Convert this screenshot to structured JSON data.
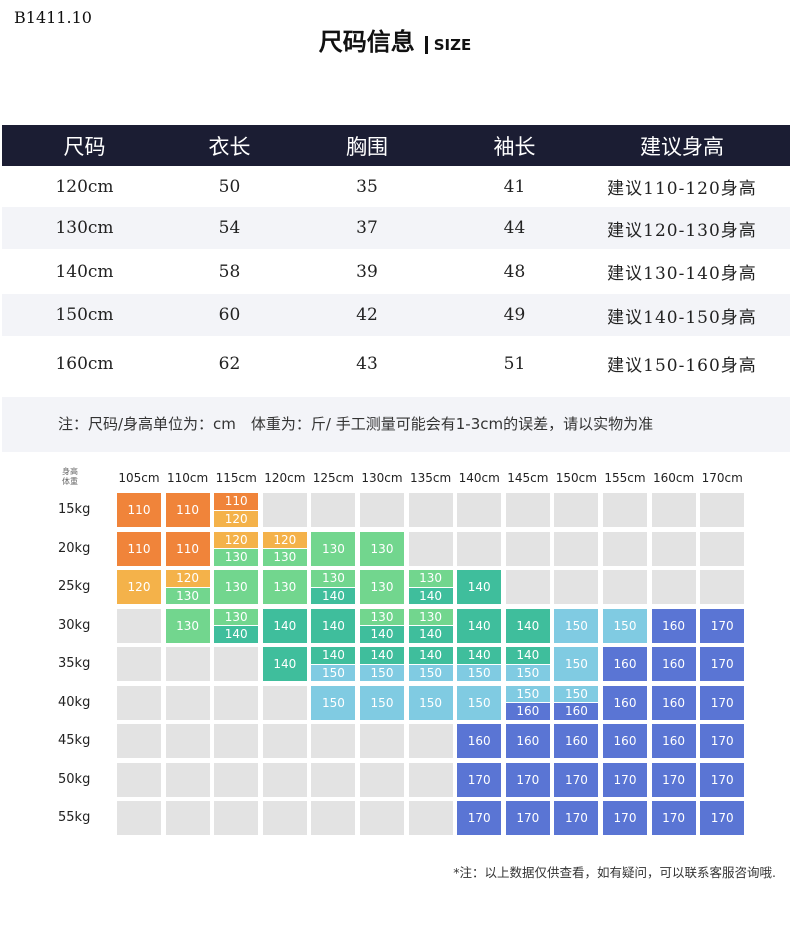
{
  "product_code": "B1411.10",
  "title": {
    "zh": "尺码信息",
    "en": "SIZE"
  },
  "size_table": {
    "headers": [
      "尺码",
      "衣长",
      "胸围",
      "袖长",
      "建议身高"
    ],
    "rows": [
      [
        "120cm",
        "50",
        "35",
        "41",
        "建议110-120身高"
      ],
      [
        "130cm",
        "54",
        "37",
        "44",
        "建议120-130身高"
      ],
      [
        "140cm",
        "58",
        "39",
        "48",
        "建议130-140身高"
      ],
      [
        "150cm",
        "60",
        "42",
        "49",
        "建议140-150身高"
      ],
      [
        "160cm",
        "62",
        "43",
        "51",
        "建议150-160身高"
      ]
    ],
    "header_color": "#1b1d33"
  },
  "note": "注：尺码/身高单位为：cm　体重为：斤/ 手工测量可能会有1-3cm的误差，请以实物为准",
  "recommendation_grid": {
    "corner_label": [
      "身高",
      "体重"
    ],
    "heights": [
      "105cm",
      "110cm",
      "115cm",
      "120cm",
      "125cm",
      "130cm",
      "135cm",
      "140cm",
      "145cm",
      "150cm",
      "155cm",
      "160cm",
      "170cm"
    ],
    "weights": [
      "15kg",
      "20kg",
      "25kg",
      "30kg",
      "35kg",
      "40kg",
      "45kg",
      "50kg",
      "55kg"
    ],
    "cells": [
      [
        [
          "110"
        ],
        [
          "110"
        ],
        [
          "110",
          "120"
        ],
        [],
        [],
        [],
        [],
        [],
        [],
        [],
        [],
        [],
        []
      ],
      [
        [
          "110"
        ],
        [
          "110"
        ],
        [
          "120",
          "130"
        ],
        [
          "120",
          "130"
        ],
        [
          "130"
        ],
        [
          "130"
        ],
        [],
        [],
        [],
        [],
        [],
        [],
        []
      ],
      [
        [
          "120"
        ],
        [
          "120",
          "130"
        ],
        [
          "130"
        ],
        [
          "130"
        ],
        [
          "130",
          "140"
        ],
        [
          "130"
        ],
        [
          "130",
          "140"
        ],
        [
          "140"
        ],
        [],
        [],
        [],
        [],
        []
      ],
      [
        [],
        [
          "130"
        ],
        [
          "130",
          "140"
        ],
        [
          "140"
        ],
        [
          "140"
        ],
        [
          "130",
          "140"
        ],
        [
          "130",
          "140"
        ],
        [
          "140"
        ],
        [
          "140"
        ],
        [
          "150"
        ],
        [
          "150"
        ],
        [
          "160"
        ],
        [
          "170"
        ]
      ],
      [
        [],
        [],
        [],
        [
          "140"
        ],
        [
          "140",
          "150"
        ],
        [
          "140",
          "150"
        ],
        [
          "140",
          "150"
        ],
        [
          "140",
          "150"
        ],
        [
          "140",
          "150"
        ],
        [
          "150"
        ],
        [
          "160"
        ],
        [
          "160"
        ],
        [
          "170"
        ]
      ],
      [
        [],
        [],
        [],
        [],
        [
          "150"
        ],
        [
          "150"
        ],
        [
          "150"
        ],
        [
          "150"
        ],
        [
          "150",
          "160"
        ],
        [
          "150",
          "160"
        ],
        [
          "160"
        ],
        [
          "160"
        ],
        [
          "170"
        ]
      ],
      [
        [],
        [],
        [],
        [],
        [],
        [],
        [],
        [
          "160"
        ],
        [
          "160"
        ],
        [
          "160"
        ],
        [
          "160"
        ],
        [
          "160"
        ],
        [
          "170"
        ]
      ],
      [
        [],
        [],
        [],
        [],
        [],
        [],
        [],
        [
          "170"
        ],
        [
          "170"
        ],
        [
          "170"
        ],
        [
          "170"
        ],
        [
          "170"
        ],
        [
          "170"
        ]
      ],
      [
        [],
        [],
        [],
        [],
        [],
        [],
        [],
        [
          "170"
        ],
        [
          "170"
        ],
        [
          "170"
        ],
        [
          "170"
        ],
        [
          "170"
        ],
        [
          "170"
        ]
      ]
    ],
    "colors": {
      "110": "#f0843a",
      "120": "#f4b24a",
      "130": "#72d68e",
      "140": "#3fbe9c",
      "150": "#80cbe2",
      "160": "#5a75d4",
      "170": "#5a75d4",
      "empty": "#e3e3e3"
    }
  },
  "footnote": "*注：以上数据仅供查看，如有疑问，可以联系客服咨询哦."
}
